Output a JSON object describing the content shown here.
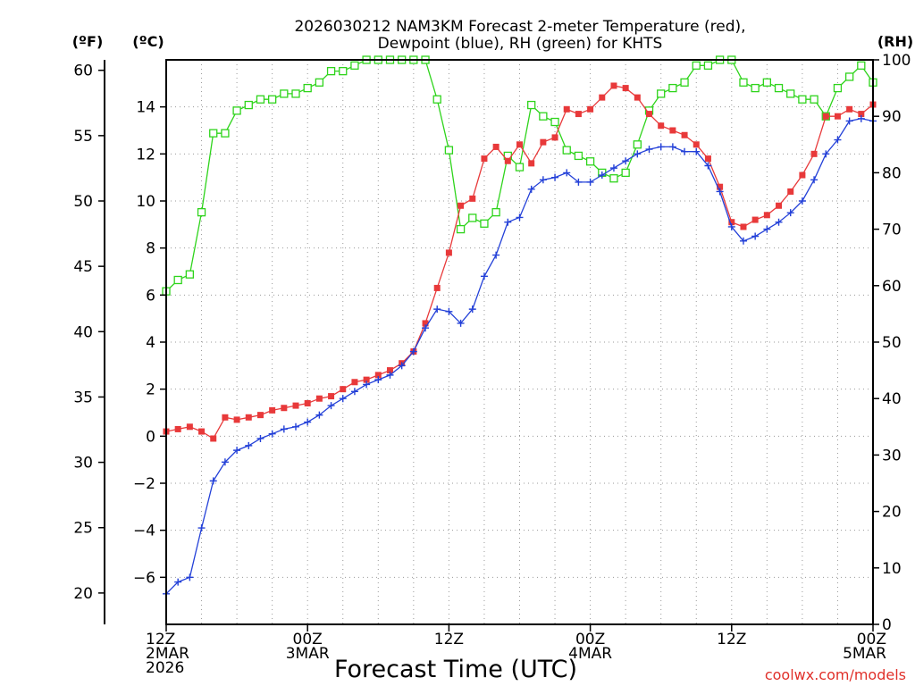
{
  "chart_data": {
    "type": "line",
    "title_line1": "2026030212 NAM3KM Forecast 2-meter Temperature (red),",
    "title_line2": "Dewpoint (blue), RH (green) for KHTS",
    "xlabel": "Forecast Time (UTC)",
    "credit": "coolwx.com/models",
    "unit_labels": {
      "f": "(ºF)",
      "c": "(ºC)",
      "rh": "(RH)"
    },
    "x_range_hours": [
      0,
      60
    ],
    "x_ticks": [
      {
        "hour": 0,
        "lines": [
          "12Z",
          "2MAR",
          "2026"
        ]
      },
      {
        "hour": 12,
        "lines": [
          "00Z",
          "3MAR"
        ]
      },
      {
        "hour": 24,
        "lines": [
          "12Z"
        ]
      },
      {
        "hour": 36,
        "lines": [
          "00Z",
          "4MAR"
        ]
      },
      {
        "hour": 48,
        "lines": [
          "12Z"
        ]
      },
      {
        "hour": 60,
        "lines": [
          "00Z",
          "5MAR"
        ]
      }
    ],
    "celsius_axis": {
      "range": [
        -8,
        16
      ],
      "ticks": [
        "-6",
        "-4",
        "-2",
        "0",
        "2",
        "4",
        "6",
        "8",
        "10",
        "12",
        "14"
      ]
    },
    "fahrenheit_axis": {
      "range": [
        17.6,
        60.8
      ],
      "ticks": [
        "20",
        "25",
        "30",
        "35",
        "40",
        "45",
        "50",
        "55",
        "60"
      ]
    },
    "rh_axis": {
      "range": [
        0,
        100
      ],
      "ticks": [
        "0",
        "10",
        "20",
        "30",
        "40",
        "50",
        "60",
        "70",
        "80",
        "90",
        "100"
      ]
    },
    "series": [
      {
        "name": "Temperature",
        "color": "#e8393a",
        "marker": "filled-square",
        "axis": "celsius",
        "x": [
          0,
          1,
          2,
          3,
          4,
          5,
          6,
          7,
          8,
          9,
          10,
          11,
          12,
          13,
          14,
          15,
          16,
          17,
          18,
          19,
          20,
          21,
          22,
          23,
          24,
          25,
          26,
          27,
          28,
          29,
          30,
          31,
          32,
          33,
          34,
          35,
          36,
          37,
          38,
          39,
          40,
          41,
          42,
          43,
          44,
          45,
          46,
          47,
          48,
          49,
          50,
          51,
          52,
          53,
          54,
          55,
          56,
          57,
          58,
          59,
          60
        ],
        "values": [
          0.2,
          0.3,
          0.4,
          0.2,
          -0.1,
          0.8,
          0.7,
          0.8,
          0.9,
          1.1,
          1.2,
          1.3,
          1.4,
          1.6,
          1.7,
          2.0,
          2.3,
          2.4,
          2.6,
          2.8,
          3.1,
          3.6,
          4.8,
          6.3,
          7.8,
          9.8,
          10.1,
          11.8,
          12.3,
          11.7,
          12.4,
          11.6,
          12.5,
          12.7,
          13.9,
          13.7,
          13.9,
          14.4,
          14.9,
          14.8,
          14.4,
          13.7,
          13.2,
          13.0,
          12.8,
          12.4,
          11.8,
          10.6,
          9.1,
          8.9,
          9.2,
          9.4,
          9.8,
          10.4,
          11.1,
          12.0,
          13.6,
          13.6,
          13.9,
          13.7,
          14.1
        ]
      },
      {
        "name": "Dewpoint",
        "color": "#2340d8",
        "marker": "plus",
        "axis": "celsius",
        "x": [
          0,
          1,
          2,
          3,
          4,
          5,
          6,
          7,
          8,
          9,
          10,
          11,
          12,
          13,
          14,
          15,
          16,
          17,
          18,
          19,
          20,
          21,
          22,
          23,
          24,
          25,
          26,
          27,
          28,
          29,
          30,
          31,
          32,
          33,
          34,
          35,
          36,
          37,
          38,
          39,
          40,
          41,
          42,
          43,
          44,
          45,
          46,
          47,
          48,
          49,
          50,
          51,
          52,
          53,
          54,
          55,
          56,
          57,
          58,
          59,
          60
        ],
        "values": [
          -6.7,
          -6.2,
          -6.0,
          -3.9,
          -1.9,
          -1.1,
          -0.6,
          -0.4,
          -0.1,
          0.1,
          0.3,
          0.4,
          0.6,
          0.9,
          1.3,
          1.6,
          1.9,
          2.2,
          2.4,
          2.6,
          3.0,
          3.6,
          4.6,
          5.4,
          5.3,
          4.8,
          5.4,
          6.8,
          7.7,
          9.1,
          9.3,
          10.5,
          10.9,
          11.0,
          11.2,
          10.8,
          10.8,
          11.1,
          11.4,
          11.7,
          12.0,
          12.2,
          12.3,
          12.3,
          12.1,
          12.1,
          11.5,
          10.4,
          8.9,
          8.3,
          8.5,
          8.8,
          9.1,
          9.5,
          10.0,
          10.9,
          12.0,
          12.6,
          13.4,
          13.5,
          13.4
        ]
      },
      {
        "name": "RH",
        "color": "#2ed41b",
        "marker": "open-square",
        "axis": "rh",
        "x": [
          0,
          1,
          2,
          3,
          4,
          5,
          6,
          7,
          8,
          9,
          10,
          11,
          12,
          13,
          14,
          15,
          16,
          17,
          18,
          19,
          20,
          21,
          22,
          23,
          24,
          25,
          26,
          27,
          28,
          29,
          30,
          31,
          32,
          33,
          34,
          35,
          36,
          37,
          38,
          39,
          40,
          41,
          42,
          43,
          44,
          45,
          46,
          47,
          48,
          49,
          50,
          51,
          52,
          53,
          54,
          55,
          56,
          57,
          58,
          59,
          60
        ],
        "values": [
          59,
          61,
          62,
          73,
          87,
          87,
          91,
          92,
          93,
          93,
          94,
          94,
          95,
          96,
          98,
          98,
          99,
          100,
          101,
          100,
          101,
          101,
          100,
          93,
          84,
          70,
          72,
          71,
          73,
          83,
          81,
          92,
          90,
          89,
          84,
          83,
          82,
          80,
          79,
          80,
          85,
          91,
          94,
          95,
          96,
          99,
          99,
          100,
          100,
          96,
          95,
          96,
          95,
          94,
          93,
          93,
          90,
          95,
          97,
          99,
          96
        ]
      }
    ]
  }
}
